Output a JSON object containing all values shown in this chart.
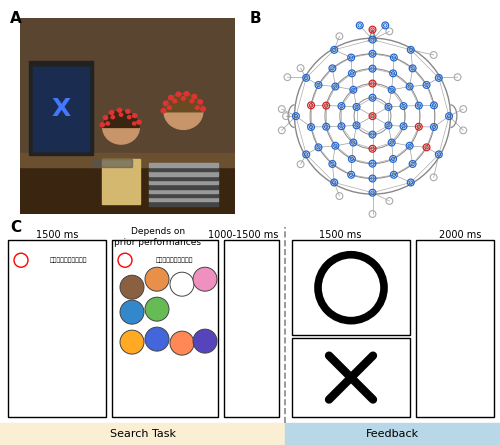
{
  "panel_A_label": "A",
  "panel_B_label": "B",
  "panel_C_label": "C",
  "bg_color": "#ffffff",
  "search_task_bg": "#faefd4",
  "feedback_bg": "#b8d8e8",
  "label_1500ms_1": "1500 ms",
  "label_depends": "Depends on\nprior performances",
  "label_1000_1500ms": "1000-1500 ms",
  "label_1500ms_fb": "1500 ms",
  "label_2000ms": "2000 ms",
  "label_search_task": "Search Task",
  "label_feedback": "Feedback",
  "japanese_text": "はどちらにいるかな？",
  "eeg_blue_color": "#2266cc",
  "eeg_red_color": "#cc2222",
  "eeg_gray_color": "#aaaaaa",
  "eeg_line_color": "#888888",
  "photo_colors": {
    "wall": "#5a4530",
    "floor": "#3a2510",
    "desk": "#6b5030",
    "monitor_frame": "#222222",
    "monitor_screen": "#1a2d50",
    "x_color": "#4477ff",
    "child_skin": "#c8956a",
    "adult_skin": "#c8956a",
    "child_shirt": "#d4b870",
    "adult_stripe1": "#444444",
    "adult_stripe2": "#999999",
    "eeg_dot": "#dd3333"
  }
}
